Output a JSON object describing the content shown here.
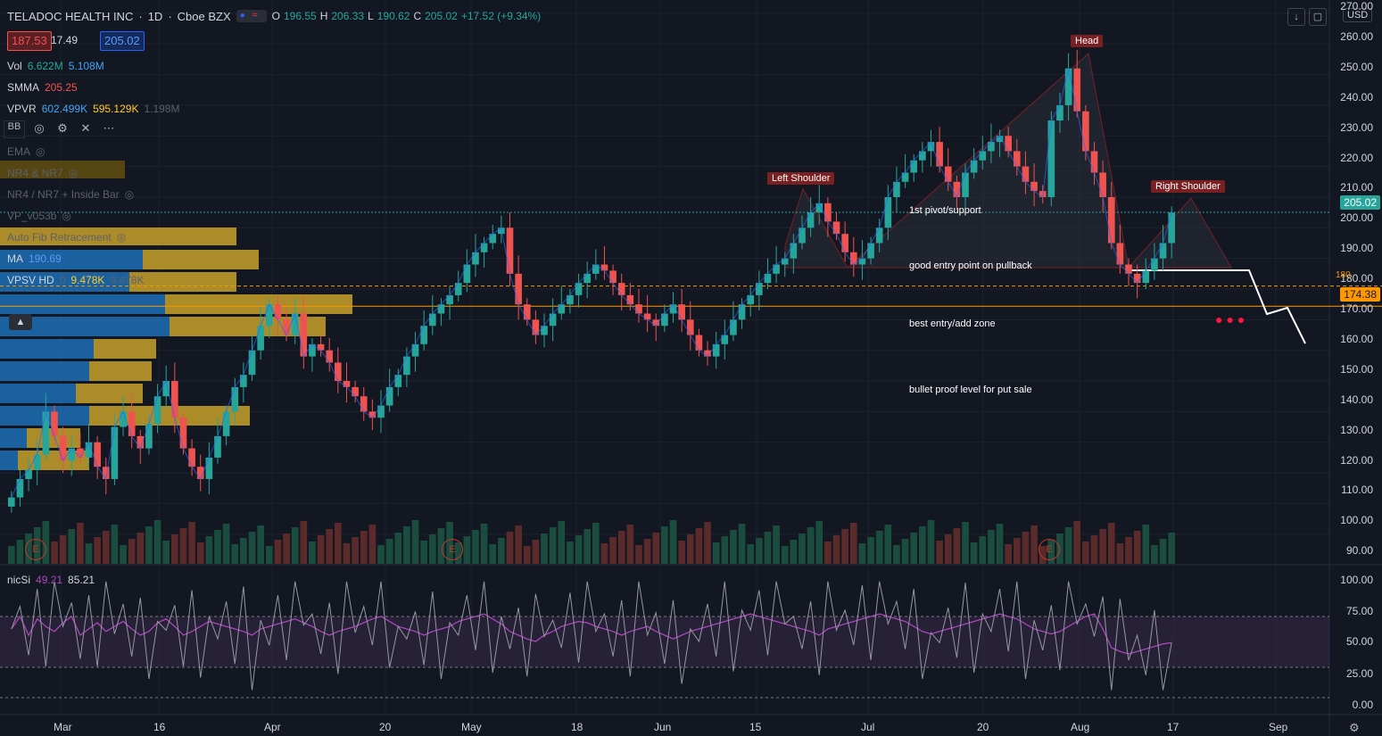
{
  "header": {
    "symbol": "TELADOC HEALTH INC",
    "interval": "1D",
    "exchange": "Cboe BZX",
    "open_label": "O",
    "open": "196.55",
    "high_label": "H",
    "high": "206.33",
    "low_label": "L",
    "low": "190.62",
    "close_label": "C",
    "close": "205.02",
    "change": "+17.52 (+9.34%)"
  },
  "quote": {
    "bid": "187.53",
    "spread": "17.49",
    "ask": "205.02"
  },
  "currency": "USD",
  "indicators": {
    "vol": {
      "name": "Vol",
      "v1": "6.622M",
      "v2": "5.108M"
    },
    "smma": {
      "name": "SMMA",
      "v1": "205.25"
    },
    "vpvr": {
      "name": "VPVR",
      "v1": "602.499K",
      "v2": "595.129K",
      "v3": "1.198M"
    },
    "bb": {
      "name": "BB"
    },
    "ema": {
      "name": "EMA"
    },
    "nr4": {
      "name": "NR4 & NR7"
    },
    "nr4b": {
      "name": "NR4 / NR7 + Inside Bar"
    },
    "vp": {
      "name": "VP_v053b"
    },
    "fib": {
      "name": "Auto Fib Retracement"
    },
    "ma": {
      "name": "MA",
      "v1": "190.69"
    },
    "vpsv": {
      "name": "VPSV HD",
      "v1": "0",
      "v2": "9.478K",
      "v3": "9.478K"
    },
    "nicsi": {
      "name": "nicSi",
      "v1": "49.21",
      "v2": "85.21"
    }
  },
  "price_axis": [
    "270.00",
    "260.00",
    "250.00",
    "240.00",
    "230.00",
    "220.00",
    "210.00",
    "200.00",
    "190.00",
    "180.00",
    "170.00",
    "160.00",
    "150.00",
    "140.00",
    "130.00",
    "120.00",
    "110.00",
    "100.00",
    "90.00"
  ],
  "osc_axis": [
    "100.00",
    "75.00",
    "50.00",
    "25.00",
    "0.00"
  ],
  "time_axis": [
    "Mar",
    "16",
    "Apr",
    "20",
    "May",
    "18",
    "Jun",
    "15",
    "Jul",
    "20",
    "Aug",
    "17",
    "Sep"
  ],
  "price_tags": {
    "last": "205.02",
    "level": "174.38",
    "small": "180"
  },
  "annotations": {
    "left_shoulder": "Left Shoulder",
    "head": "Head",
    "right_shoulder": "Right Shoulder",
    "pivot": "1st pivot/support",
    "entry": "good entry point on pullback",
    "best": "best entry/add zone",
    "bullet": "bullet proof level for put sale"
  },
  "earnings_label": "E",
  "colors": {
    "up": "#26a69a",
    "down": "#ef5350",
    "bg": "#131722",
    "level": "#ff9800",
    "osc": "#ab47bc"
  },
  "chart_data": {
    "type": "candlestick",
    "ylim": [
      88,
      272
    ],
    "closes": [
      112,
      118,
      121,
      126,
      140,
      132,
      124,
      128,
      125,
      130,
      122,
      118,
      135,
      140,
      132,
      128,
      136,
      145,
      150,
      138,
      128,
      122,
      118,
      125,
      132,
      140,
      148,
      152,
      160,
      168,
      175,
      170,
      165,
      172,
      158,
      162,
      160,
      156,
      150,
      148,
      145,
      140,
      138,
      142,
      148,
      152,
      158,
      162,
      168,
      172,
      175,
      178,
      182,
      188,
      192,
      195,
      198,
      200,
      185,
      175,
      170,
      165,
      168,
      172,
      175,
      178,
      182,
      185,
      188,
      186,
      182,
      178,
      175,
      172,
      170,
      168,
      172,
      175,
      170,
      165,
      160,
      158,
      162,
      165,
      170,
      175,
      178,
      182,
      185,
      188,
      190,
      195,
      200,
      205,
      208,
      202,
      198,
      192,
      188,
      190,
      195,
      200,
      210,
      215,
      218,
      222,
      225,
      228,
      220,
      215,
      210,
      218,
      222,
      225,
      228,
      230,
      225,
      220,
      215,
      212,
      210,
      235,
      240,
      252,
      238,
      225,
      218,
      210,
      195,
      188,
      185,
      182,
      186,
      190,
      195,
      205
    ],
    "mark_rsi": [
      60,
      70,
      55,
      68,
      62,
      58,
      65,
      70,
      55,
      60,
      65,
      58,
      62,
      66,
      60,
      55,
      58,
      65,
      68,
      62,
      55,
      58,
      62,
      66,
      64,
      62,
      60,
      58,
      55,
      60,
      62,
      64,
      66,
      68,
      65,
      62,
      58,
      55,
      58,
      60,
      62,
      65,
      68,
      70,
      66,
      62,
      60,
      58,
      55,
      58,
      60,
      62,
      66,
      68,
      70,
      72,
      68,
      64,
      58,
      55,
      52,
      50,
      55,
      58,
      62,
      64,
      66,
      65,
      62,
      60,
      58,
      55,
      58,
      60,
      62,
      58,
      55,
      52,
      55,
      58,
      60,
      62,
      64,
      66,
      68,
      70,
      72,
      70,
      68,
      66,
      64,
      62,
      60,
      58,
      55,
      60,
      62,
      64,
      66,
      68,
      70,
      72,
      70,
      68,
      66,
      62,
      58,
      56,
      58,
      60,
      62,
      64,
      66,
      68,
      70,
      72,
      70,
      68,
      64,
      60,
      58,
      56,
      58,
      62,
      66,
      70,
      72,
      60,
      45,
      42,
      40,
      42,
      44,
      46,
      48,
      49
    ],
    "levels": {
      "resistance": 205.02,
      "support": 174.38,
      "neckline": 182
    }
  }
}
